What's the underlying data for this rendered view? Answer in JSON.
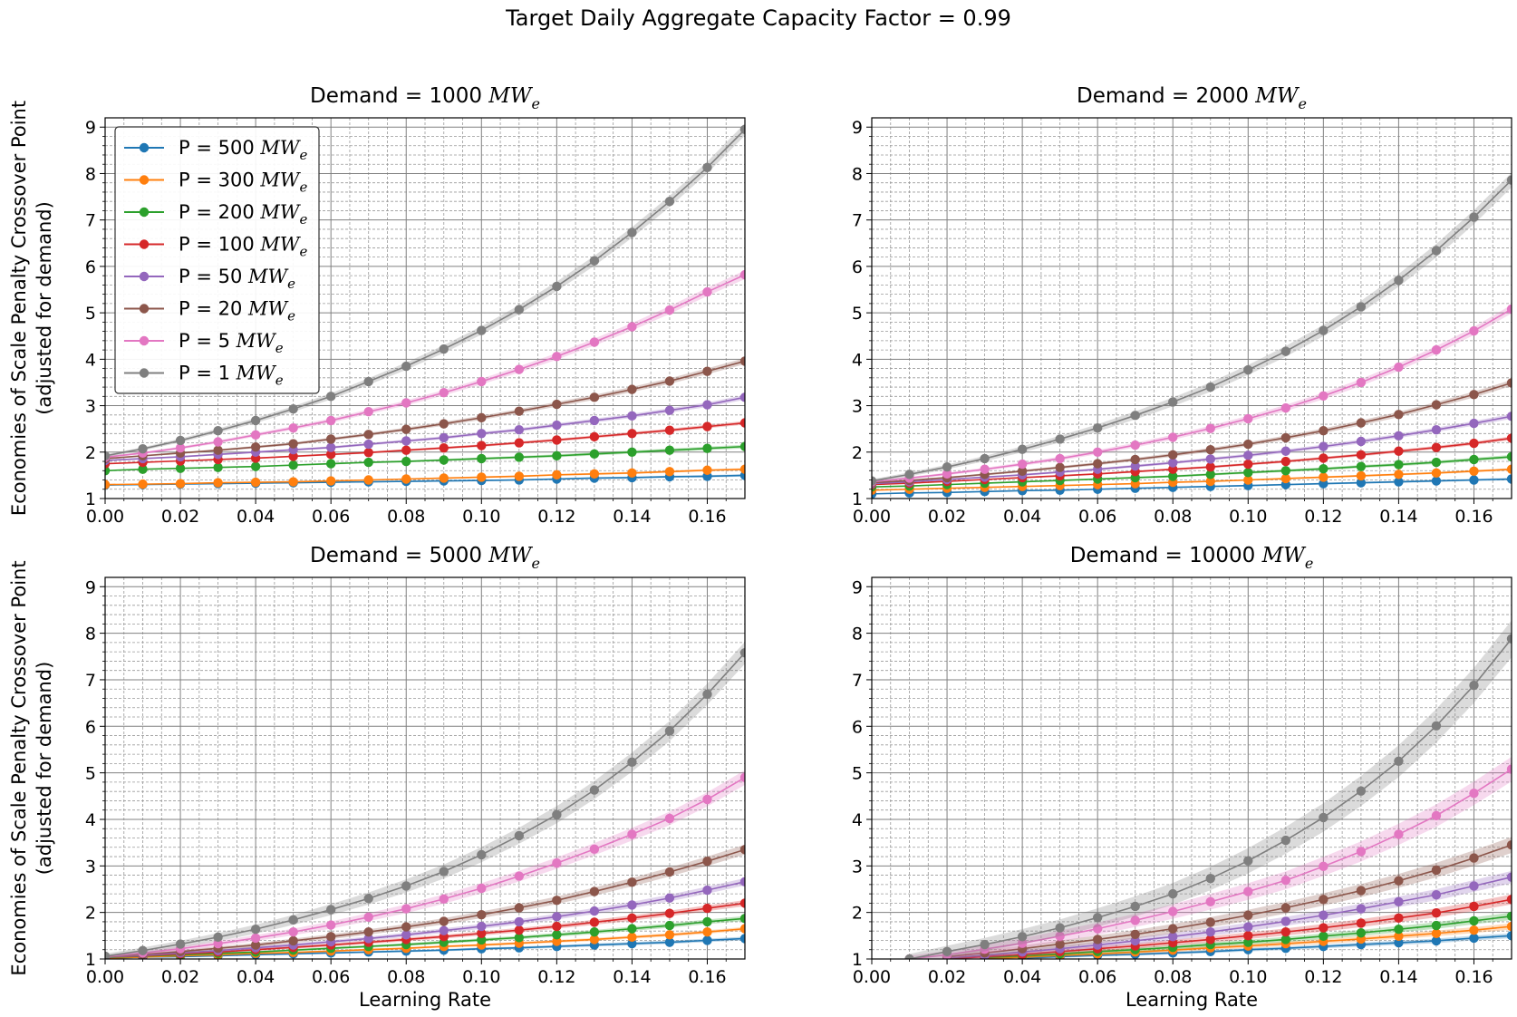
{
  "suptitle": "Target Daily Aggregate Capacity Factor = 0.99",
  "shared": {
    "ylabel_line1": "Economies of Scale Penalty Crossover Point",
    "ylabel_line2": "(adjusted for demand)",
    "xlabel": "Learning Rate",
    "x_ticks": [
      "0.00",
      "0.02",
      "0.04",
      "0.06",
      "0.08",
      "0.10",
      "0.12",
      "0.14",
      "0.16"
    ],
    "y_ticks": [
      "1",
      "2",
      "3",
      "4",
      "5",
      "6",
      "7",
      "8",
      "9"
    ]
  },
  "legend": {
    "placement": "upper-left of first panel",
    "entries": [
      {
        "prefix": "P = 500 ",
        "unit": "MW",
        "sub": "e",
        "color": "#1f77b4"
      },
      {
        "prefix": "P = 300 ",
        "unit": "MW",
        "sub": "e",
        "color": "#ff7f0e"
      },
      {
        "prefix": "P = 200 ",
        "unit": "MW",
        "sub": "e",
        "color": "#2ca02c"
      },
      {
        "prefix": "P = 100 ",
        "unit": "MW",
        "sub": "e",
        "color": "#d62728"
      },
      {
        "prefix": "P = 50 ",
        "unit": "MW",
        "sub": "e",
        "color": "#9467bd"
      },
      {
        "prefix": "P = 20 ",
        "unit": "MW",
        "sub": "e",
        "color": "#8c564b"
      },
      {
        "prefix": "P = 5 ",
        "unit": "MW",
        "sub": "e",
        "color": "#e377c2"
      },
      {
        "prefix": "P = 1 ",
        "unit": "MW",
        "sub": "e",
        "color": "#7f7f7f"
      }
    ]
  },
  "chart_data": [
    {
      "type": "line",
      "title_prefix": "Demand = 1000 ",
      "title_unit": "MW",
      "title_sub": "e",
      "xlim": [
        0,
        0.17
      ],
      "ylim": [
        1,
        9.2
      ],
      "grid": true,
      "x": [
        0,
        0.01,
        0.02,
        0.03,
        0.04,
        0.05,
        0.06,
        0.07,
        0.08,
        0.09,
        0.1,
        0.11,
        0.12,
        0.13,
        0.14,
        0.15,
        0.16,
        0.17
      ],
      "series": [
        {
          "name": "P = 500 MWe",
          "color": "#1f77b4",
          "values": [
            1.29,
            1.3,
            1.31,
            1.32,
            1.33,
            1.34,
            1.35,
            1.36,
            1.37,
            1.38,
            1.39,
            1.4,
            1.42,
            1.44,
            1.45,
            1.47,
            1.48,
            1.5
          ],
          "band": 0.02
        },
        {
          "name": "P = 300 MWe",
          "color": "#ff7f0e",
          "values": [
            1.3,
            1.31,
            1.32,
            1.34,
            1.35,
            1.36,
            1.38,
            1.4,
            1.42,
            1.44,
            1.46,
            1.48,
            1.51,
            1.53,
            1.55,
            1.58,
            1.61,
            1.63
          ],
          "band": 0.02
        },
        {
          "name": "P = 200 MWe",
          "color": "#2ca02c",
          "values": [
            1.6,
            1.63,
            1.65,
            1.67,
            1.69,
            1.72,
            1.75,
            1.78,
            1.8,
            1.83,
            1.86,
            1.89,
            1.92,
            1.96,
            2.0,
            2.04,
            2.08,
            2.12
          ],
          "band": 0.03
        },
        {
          "name": "P = 100 MWe",
          "color": "#d62728",
          "values": [
            1.75,
            1.78,
            1.81,
            1.84,
            1.87,
            1.91,
            1.95,
            1.99,
            2.04,
            2.09,
            2.14,
            2.2,
            2.26,
            2.33,
            2.4,
            2.47,
            2.55,
            2.63
          ],
          "band": 0.03
        },
        {
          "name": "P = 50 MWe",
          "color": "#9467bd",
          "values": [
            1.82,
            1.86,
            1.9,
            1.95,
            2.0,
            2.05,
            2.1,
            2.17,
            2.24,
            2.31,
            2.4,
            2.48,
            2.58,
            2.68,
            2.78,
            2.9,
            3.02,
            3.18
          ],
          "band": 0.04
        },
        {
          "name": "P = 20 MWe",
          "color": "#8c564b",
          "values": [
            1.86,
            1.92,
            1.98,
            2.04,
            2.11,
            2.18,
            2.28,
            2.38,
            2.49,
            2.61,
            2.74,
            2.88,
            3.03,
            3.18,
            3.35,
            3.53,
            3.74,
            3.96
          ],
          "band": 0.05
        },
        {
          "name": "P = 5 MWe",
          "color": "#e377c2",
          "values": [
            1.89,
            1.98,
            2.09,
            2.22,
            2.37,
            2.52,
            2.68,
            2.87,
            3.06,
            3.28,
            3.52,
            3.78,
            4.06,
            4.37,
            4.7,
            5.06,
            5.45,
            5.82
          ],
          "band": 0.07
        },
        {
          "name": "P = 1 MWe",
          "color": "#7f7f7f",
          "values": [
            1.92,
            2.07,
            2.25,
            2.46,
            2.68,
            2.93,
            3.2,
            3.52,
            3.85,
            4.22,
            4.62,
            5.07,
            5.57,
            6.12,
            6.73,
            7.4,
            8.13,
            8.95
          ],
          "band": 0.1
        }
      ]
    },
    {
      "type": "line",
      "title_prefix": "Demand = 2000 ",
      "title_unit": "MW",
      "title_sub": "e",
      "xlim": [
        0,
        0.17
      ],
      "ylim": [
        1,
        9.2
      ],
      "grid": true,
      "x": [
        0,
        0.01,
        0.02,
        0.03,
        0.04,
        0.05,
        0.06,
        0.07,
        0.08,
        0.09,
        0.1,
        0.11,
        0.12,
        0.13,
        0.14,
        0.15,
        0.16,
        0.17
      ],
      "series": [
        {
          "name": "P = 500 MWe",
          "color": "#1f77b4",
          "values": [
            1.1,
            1.12,
            1.13,
            1.15,
            1.17,
            1.18,
            1.2,
            1.22,
            1.24,
            1.26,
            1.28,
            1.3,
            1.32,
            1.34,
            1.36,
            1.38,
            1.4,
            1.42
          ],
          "band": 0.02
        },
        {
          "name": "P = 300 MWe",
          "color": "#ff7f0e",
          "values": [
            1.18,
            1.2,
            1.22,
            1.24,
            1.26,
            1.28,
            1.3,
            1.32,
            1.35,
            1.37,
            1.4,
            1.43,
            1.46,
            1.49,
            1.52,
            1.55,
            1.59,
            1.63
          ],
          "band": 0.02
        },
        {
          "name": "P = 200 MWe",
          "color": "#2ca02c",
          "values": [
            1.25,
            1.27,
            1.3,
            1.33,
            1.36,
            1.39,
            1.42,
            1.45,
            1.48,
            1.52,
            1.56,
            1.6,
            1.64,
            1.69,
            1.73,
            1.78,
            1.84,
            1.9
          ],
          "band": 0.03
        },
        {
          "name": "P = 100 MWe",
          "color": "#d62728",
          "values": [
            1.3,
            1.33,
            1.37,
            1.41,
            1.45,
            1.49,
            1.53,
            1.58,
            1.63,
            1.68,
            1.74,
            1.8,
            1.87,
            1.94,
            2.02,
            2.1,
            2.19,
            2.3
          ],
          "band": 0.03
        },
        {
          "name": "P = 50 MWe",
          "color": "#9467bd",
          "values": [
            1.32,
            1.36,
            1.41,
            1.46,
            1.51,
            1.57,
            1.63,
            1.7,
            1.77,
            1.85,
            1.93,
            2.02,
            2.12,
            2.23,
            2.35,
            2.48,
            2.62,
            2.77
          ],
          "band": 0.04
        },
        {
          "name": "P = 20 MWe",
          "color": "#8c564b",
          "values": [
            1.34,
            1.39,
            1.45,
            1.52,
            1.59,
            1.67,
            1.75,
            1.84,
            1.94,
            2.05,
            2.17,
            2.31,
            2.46,
            2.63,
            2.81,
            3.02,
            3.24,
            3.49
          ],
          "band": 0.05
        },
        {
          "name": "P = 5 MWe",
          "color": "#e377c2",
          "values": [
            1.36,
            1.44,
            1.53,
            1.63,
            1.74,
            1.86,
            2.0,
            2.15,
            2.32,
            2.51,
            2.72,
            2.95,
            3.21,
            3.5,
            3.83,
            4.2,
            4.61,
            5.08
          ],
          "band": 0.07
        },
        {
          "name": "P = 1 MWe",
          "color": "#7f7f7f",
          "values": [
            1.38,
            1.52,
            1.68,
            1.86,
            2.06,
            2.28,
            2.52,
            2.79,
            3.08,
            3.4,
            3.77,
            4.17,
            4.62,
            5.13,
            5.7,
            6.34,
            7.06,
            7.86
          ],
          "band": 0.12
        }
      ]
    },
    {
      "type": "line",
      "title_prefix": "Demand = 5000 ",
      "title_unit": "MW",
      "title_sub": "e",
      "xlim": [
        0,
        0.17
      ],
      "ylim": [
        1,
        9.2
      ],
      "grid": true,
      "x": [
        0,
        0.01,
        0.02,
        0.03,
        0.04,
        0.05,
        0.06,
        0.07,
        0.08,
        0.09,
        0.1,
        0.11,
        0.12,
        0.13,
        0.14,
        0.15,
        0.16,
        0.17
      ],
      "series": [
        {
          "name": "P = 500 MWe",
          "color": "#1f77b4",
          "values": [
            1.02,
            1.04,
            1.05,
            1.07,
            1.09,
            1.11,
            1.13,
            1.15,
            1.17,
            1.19,
            1.22,
            1.24,
            1.27,
            1.3,
            1.33,
            1.36,
            1.4,
            1.44
          ],
          "band": 0.03
        },
        {
          "name": "P = 300 MWe",
          "color": "#ff7f0e",
          "values": [
            1.02,
            1.04,
            1.07,
            1.09,
            1.12,
            1.14,
            1.17,
            1.2,
            1.23,
            1.27,
            1.3,
            1.34,
            1.38,
            1.42,
            1.47,
            1.52,
            1.58,
            1.65
          ],
          "band": 0.03
        },
        {
          "name": "P = 200 MWe",
          "color": "#2ca02c",
          "values": [
            1.03,
            1.06,
            1.09,
            1.12,
            1.15,
            1.19,
            1.23,
            1.27,
            1.31,
            1.36,
            1.41,
            1.46,
            1.52,
            1.58,
            1.65,
            1.72,
            1.8,
            1.87
          ],
          "band": 0.04
        },
        {
          "name": "P = 100 MWe",
          "color": "#d62728",
          "values": [
            1.04,
            1.07,
            1.11,
            1.15,
            1.2,
            1.25,
            1.3,
            1.36,
            1.42,
            1.48,
            1.55,
            1.62,
            1.7,
            1.79,
            1.88,
            1.98,
            2.09,
            2.2
          ],
          "band": 0.05
        },
        {
          "name": "P = 50 MWe",
          "color": "#9467bd",
          "values": [
            1.04,
            1.08,
            1.13,
            1.18,
            1.24,
            1.3,
            1.37,
            1.44,
            1.52,
            1.61,
            1.7,
            1.8,
            1.91,
            2.03,
            2.16,
            2.31,
            2.48,
            2.66
          ],
          "band": 0.06
        },
        {
          "name": "P = 20 MWe",
          "color": "#8c564b",
          "values": [
            1.04,
            1.1,
            1.16,
            1.23,
            1.3,
            1.39,
            1.48,
            1.58,
            1.69,
            1.81,
            1.95,
            2.1,
            2.26,
            2.45,
            2.65,
            2.87,
            3.1,
            3.35
          ],
          "band": 0.08
        },
        {
          "name": "P = 5 MWe",
          "color": "#e377c2",
          "values": [
            1.05,
            1.13,
            1.22,
            1.33,
            1.45,
            1.58,
            1.73,
            1.9,
            2.08,
            2.29,
            2.52,
            2.78,
            3.06,
            3.36,
            3.68,
            4.02,
            4.43,
            4.9
          ],
          "band": 0.12
        },
        {
          "name": "P = 1 MWe",
          "color": "#7f7f7f",
          "values": [
            1.06,
            1.18,
            1.32,
            1.47,
            1.64,
            1.84,
            2.06,
            2.3,
            2.57,
            2.88,
            3.24,
            3.65,
            4.1,
            4.63,
            5.23,
            5.9,
            6.69,
            7.58
          ],
          "band": 0.18
        }
      ]
    },
    {
      "type": "line",
      "title_prefix": "Demand = 10000 ",
      "title_unit": "MW",
      "title_sub": "e",
      "xlim": [
        0,
        0.17
      ],
      "ylim": [
        1,
        9.2
      ],
      "grid": true,
      "x": [
        0,
        0.01,
        0.02,
        0.03,
        0.04,
        0.05,
        0.06,
        0.07,
        0.08,
        0.09,
        0.1,
        0.11,
        0.12,
        0.13,
        0.14,
        0.15,
        0.16,
        0.17
      ],
      "series": [
        {
          "name": "P = 500 MWe",
          "color": "#1f77b4",
          "values": [
            null,
            null,
            null,
            null,
            1.02,
            1.05,
            1.08,
            1.1,
            1.13,
            1.16,
            1.2,
            1.23,
            1.27,
            1.31,
            1.35,
            1.39,
            1.45,
            1.5
          ],
          "band": 0.04
        },
        {
          "name": "P = 300 MWe",
          "color": "#ff7f0e",
          "values": [
            null,
            null,
            null,
            1.0,
            1.04,
            1.08,
            1.11,
            1.15,
            1.19,
            1.24,
            1.28,
            1.33,
            1.38,
            1.43,
            1.49,
            1.55,
            1.62,
            1.7
          ],
          "band": 0.05
        },
        {
          "name": "P = 200 MWe",
          "color": "#2ca02c",
          "values": [
            null,
            null,
            null,
            1.03,
            1.07,
            1.11,
            1.16,
            1.2,
            1.25,
            1.31,
            1.36,
            1.42,
            1.49,
            1.56,
            1.64,
            1.72,
            1.82,
            1.92
          ],
          "band": 0.06
        },
        {
          "name": "P = 100 MWe",
          "color": "#d62728",
          "values": [
            null,
            null,
            1.0,
            1.05,
            1.1,
            1.16,
            1.22,
            1.28,
            1.35,
            1.42,
            1.5,
            1.58,
            1.67,
            1.77,
            1.88,
            1.99,
            2.13,
            2.28
          ],
          "band": 0.08
        },
        {
          "name": "P = 50 MWe",
          "color": "#9467bd",
          "values": [
            null,
            null,
            1.02,
            1.08,
            1.15,
            1.22,
            1.3,
            1.39,
            1.48,
            1.58,
            1.69,
            1.81,
            1.94,
            2.08,
            2.23,
            2.38,
            2.57,
            2.76
          ],
          "band": 0.1
        },
        {
          "name": "P = 20 MWe",
          "color": "#8c564b",
          "values": [
            null,
            null,
            1.05,
            1.13,
            1.22,
            1.32,
            1.42,
            1.53,
            1.65,
            1.79,
            1.94,
            2.1,
            2.28,
            2.47,
            2.68,
            2.91,
            3.17,
            3.45
          ],
          "band": 0.13
        },
        {
          "name": "P = 5 MWe",
          "color": "#e377c2",
          "values": [
            null,
            1.0,
            1.09,
            1.21,
            1.34,
            1.49,
            1.65,
            1.83,
            2.02,
            2.23,
            2.45,
            2.69,
            2.99,
            3.31,
            3.68,
            4.08,
            4.56,
            5.08
          ],
          "band": 0.2
        },
        {
          "name": "P = 1 MWe",
          "color": "#7f7f7f",
          "values": [
            null,
            1.0,
            1.16,
            1.31,
            1.48,
            1.67,
            1.89,
            2.13,
            2.4,
            2.73,
            3.11,
            3.55,
            4.04,
            4.61,
            5.25,
            6.01,
            6.88,
            7.88
          ],
          "band": 0.3
        }
      ]
    }
  ]
}
